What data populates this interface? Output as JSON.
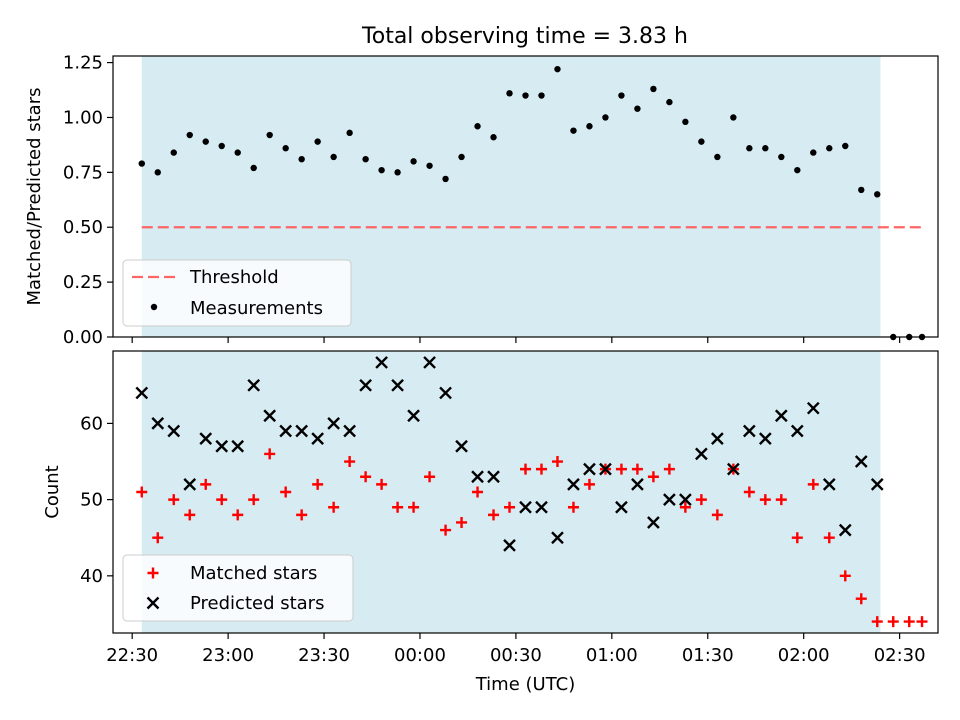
{
  "colors": {
    "shade": "#add8e6",
    "threshold": "#ff6666",
    "measurement": "#000000",
    "matched": "#ff0000",
    "predicted": "#000000",
    "axis": "#000000",
    "legend_bg": "#ffffff"
  },
  "chart_data": [
    {
      "type": "scatter",
      "title": "Total observing time = 3.83 h",
      "xlabel": "",
      "ylabel": "Matched/Predicted stars",
      "xlim": [
        "22:24",
        "02:42"
      ],
      "ylim": [
        0,
        1.28
      ],
      "yticks": [
        0,
        0.25,
        0.5,
        0.75,
        1.0,
        1.25
      ],
      "ytick_labels": [
        "0.00",
        "0.25",
        "0.50",
        "0.75",
        "1.00",
        "1.25"
      ],
      "legend_position": "lower-left",
      "shaded_interval": [
        "22:33",
        "02:24"
      ],
      "series": [
        {
          "name": "Threshold",
          "kind": "dashed-line",
          "x": [
            "22:33",
            "02:37"
          ],
          "y": [
            0.5,
            0.5
          ]
        },
        {
          "name": "Measurements",
          "kind": "points",
          "x": [
            "22:33",
            "22:38",
            "22:43",
            "22:48",
            "22:53",
            "22:58",
            "23:03",
            "23:08",
            "23:13",
            "23:18",
            "23:23",
            "23:28",
            "23:33",
            "23:38",
            "23:43",
            "23:48",
            "23:53",
            "23:58",
            "00:03",
            "00:08",
            "00:13",
            "00:18",
            "00:23",
            "00:28",
            "00:33",
            "00:38",
            "00:43",
            "00:48",
            "00:53",
            "00:58",
            "01:03",
            "01:08",
            "01:13",
            "01:18",
            "01:23",
            "01:28",
            "01:33",
            "01:38",
            "01:43",
            "01:48",
            "01:53",
            "01:58",
            "02:03",
            "02:08",
            "02:13",
            "02:18",
            "02:23",
            "02:28",
            "02:33",
            "02:37"
          ],
          "y": [
            0.79,
            0.75,
            0.84,
            0.92,
            0.89,
            0.87,
            0.84,
            0.77,
            0.92,
            0.86,
            0.81,
            0.89,
            0.82,
            0.93,
            0.81,
            0.76,
            0.75,
            0.8,
            0.78,
            0.72,
            0.82,
            0.96,
            0.91,
            1.11,
            1.1,
            1.1,
            1.22,
            0.94,
            0.96,
            1.0,
            1.1,
            1.04,
            1.13,
            1.07,
            0.98,
            0.89,
            0.82,
            1.0,
            0.86,
            0.86,
            0.82,
            0.76,
            0.84,
            0.86,
            0.87,
            0.67,
            0.65,
            0,
            0,
            0
          ]
        }
      ]
    },
    {
      "type": "scatter",
      "title": "",
      "xlabel": "Time (UTC)",
      "ylabel": "Count",
      "xlim": [
        "22:24",
        "02:42"
      ],
      "ylim": [
        32.5,
        69.5
      ],
      "yticks": [
        40,
        50,
        60
      ],
      "ytick_labels": [
        "40",
        "50",
        "60"
      ],
      "xticks": [
        "22:30",
        "23:00",
        "23:30",
        "00:00",
        "00:30",
        "01:00",
        "01:30",
        "02:00",
        "02:30"
      ],
      "xtick_labels": [
        "22:30",
        "23:00",
        "23:30",
        "00:00",
        "00:30",
        "01:00",
        "01:30",
        "02:00",
        "02:30"
      ],
      "legend_position": "lower-left",
      "shaded_interval": [
        "22:33",
        "02:24"
      ],
      "series": [
        {
          "name": "Matched stars",
          "marker": "plus",
          "x": [
            "22:33",
            "22:38",
            "22:43",
            "22:48",
            "22:53",
            "22:58",
            "23:03",
            "23:08",
            "23:13",
            "23:18",
            "23:23",
            "23:28",
            "23:33",
            "23:38",
            "23:43",
            "23:48",
            "23:53",
            "23:58",
            "00:03",
            "00:08",
            "00:13",
            "00:18",
            "00:23",
            "00:28",
            "00:33",
            "00:38",
            "00:43",
            "00:48",
            "00:53",
            "00:58",
            "01:03",
            "01:08",
            "01:13",
            "01:18",
            "01:23",
            "01:28",
            "01:33",
            "01:38",
            "01:43",
            "01:48",
            "01:53",
            "01:58",
            "02:03",
            "02:08",
            "02:13",
            "02:18",
            "02:23",
            "02:28",
            "02:33",
            "02:37"
          ],
          "y": [
            51,
            45,
            50,
            48,
            52,
            50,
            48,
            50,
            56,
            51,
            48,
            52,
            49,
            55,
            53,
            52,
            49,
            49,
            53,
            46,
            47,
            51,
            48,
            49,
            54,
            54,
            55,
            49,
            52,
            54,
            54,
            54,
            53,
            54,
            49,
            50,
            48,
            54,
            51,
            50,
            50,
            45,
            52,
            45,
            40,
            37,
            34,
            34,
            34,
            34
          ]
        },
        {
          "name": "Predicted stars",
          "marker": "x",
          "x": [
            "22:33",
            "22:38",
            "22:43",
            "22:48",
            "22:53",
            "22:58",
            "23:03",
            "23:08",
            "23:13",
            "23:18",
            "23:23",
            "23:28",
            "23:33",
            "23:38",
            "23:43",
            "23:48",
            "23:53",
            "23:58",
            "00:03",
            "00:08",
            "00:13",
            "00:18",
            "00:23",
            "00:28",
            "00:33",
            "00:38",
            "00:43",
            "00:48",
            "00:53",
            "00:58",
            "01:03",
            "01:08",
            "01:13",
            "01:18",
            "01:23",
            "01:28",
            "01:33",
            "01:38",
            "01:43",
            "01:48",
            "01:53",
            "01:58",
            "02:03",
            "02:08",
            "02:13",
            "02:18",
            "02:23"
          ],
          "y": [
            64,
            60,
            59,
            52,
            58,
            57,
            57,
            65,
            61,
            59,
            59,
            58,
            60,
            59,
            65,
            68,
            65,
            61,
            68,
            64,
            57,
            53,
            53,
            44,
            49,
            49,
            45,
            52,
            54,
            54,
            49,
            52,
            47,
            50,
            50,
            56,
            58,
            54,
            59,
            58,
            61,
            59,
            62,
            52,
            46,
            55,
            52
          ]
        }
      ]
    }
  ]
}
